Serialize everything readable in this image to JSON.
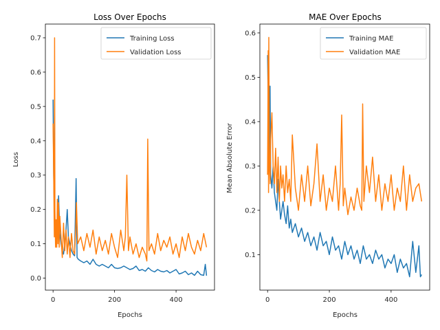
{
  "chart_data": [
    {
      "type": "line",
      "title": "Loss Over Epochs",
      "xlabel": "Epochs",
      "ylabel": "Loss",
      "xlim": [
        -25,
        525
      ],
      "ylim": [
        -0.035,
        0.74
      ],
      "xticks": [
        0,
        200,
        400
      ],
      "yticks": [
        0.0,
        0.1,
        0.2,
        0.3,
        0.4,
        0.5,
        0.6,
        0.7
      ],
      "ytick_labels": [
        "0.0",
        "0.1",
        "0.2",
        "0.3",
        "0.4",
        "0.5",
        "0.6",
        "0.7"
      ],
      "legend_position": "top-right",
      "grid": false,
      "series": [
        {
          "name": "Training Loss",
          "color": "#1f77b4",
          "x": [
            0,
            2,
            4,
            6,
            8,
            10,
            14,
            18,
            22,
            26,
            30,
            34,
            38,
            42,
            46,
            50,
            55,
            60,
            65,
            70,
            75,
            78,
            82,
            90,
            100,
            110,
            120,
            130,
            140,
            150,
            160,
            170,
            180,
            190,
            200,
            210,
            220,
            230,
            240,
            250,
            260,
            270,
            280,
            290,
            300,
            310,
            320,
            330,
            340,
            350,
            360,
            370,
            380,
            390,
            400,
            410,
            420,
            430,
            440,
            450,
            460,
            470,
            480,
            490,
            495,
            499
          ],
          "y": [
            0.52,
            0.3,
            0.2,
            0.17,
            0.14,
            0.16,
            0.12,
            0.24,
            0.13,
            0.1,
            0.08,
            0.07,
            0.1,
            0.14,
            0.2,
            0.12,
            0.1,
            0.08,
            0.07,
            0.065,
            0.29,
            0.06,
            0.055,
            0.05,
            0.045,
            0.05,
            0.04,
            0.055,
            0.04,
            0.035,
            0.04,
            0.035,
            0.03,
            0.04,
            0.03,
            0.028,
            0.03,
            0.035,
            0.03,
            0.025,
            0.028,
            0.035,
            0.022,
            0.025,
            0.02,
            0.03,
            0.022,
            0.018,
            0.025,
            0.02,
            0.018,
            0.022,
            0.015,
            0.02,
            0.025,
            0.012,
            0.015,
            0.02,
            0.01,
            0.015,
            0.008,
            0.02,
            0.01,
            0.008,
            0.04,
            0.007
          ]
        },
        {
          "name": "Validation Loss",
          "color": "#ff7f0e",
          "x": [
            0,
            2,
            4,
            5,
            6,
            8,
            10,
            12,
            14,
            16,
            18,
            20,
            22,
            26,
            30,
            34,
            38,
            42,
            46,
            50,
            55,
            60,
            65,
            70,
            74,
            76,
            80,
            90,
            100,
            110,
            120,
            130,
            140,
            150,
            160,
            170,
            180,
            190,
            200,
            210,
            220,
            230,
            235,
            240,
            245,
            250,
            260,
            270,
            280,
            290,
            300,
            305,
            308,
            312,
            320,
            330,
            340,
            350,
            360,
            370,
            380,
            390,
            400,
            410,
            420,
            430,
            440,
            450,
            460,
            470,
            480,
            490,
            499
          ],
          "y": [
            0.45,
            0.3,
            0.12,
            0.7,
            0.2,
            0.09,
            0.17,
            0.09,
            0.23,
            0.1,
            0.22,
            0.09,
            0.18,
            0.12,
            0.06,
            0.16,
            0.08,
            0.14,
            0.07,
            0.12,
            0.06,
            0.13,
            0.08,
            0.07,
            0.15,
            0.22,
            0.1,
            0.12,
            0.08,
            0.13,
            0.09,
            0.14,
            0.07,
            0.12,
            0.08,
            0.11,
            0.07,
            0.13,
            0.09,
            0.06,
            0.14,
            0.08,
            0.12,
            0.3,
            0.08,
            0.12,
            0.07,
            0.1,
            0.06,
            0.09,
            0.07,
            0.05,
            0.405,
            0.08,
            0.1,
            0.07,
            0.13,
            0.08,
            0.11,
            0.09,
            0.12,
            0.07,
            0.1,
            0.06,
            0.12,
            0.08,
            0.13,
            0.09,
            0.07,
            0.11,
            0.08,
            0.13,
            0.09
          ]
        }
      ]
    },
    {
      "type": "line",
      "title": "MAE Over Epochs",
      "xlabel": "Epochs",
      "ylabel": "Mean Absolute Error",
      "xlim": [
        -25,
        525
      ],
      "ylim": [
        0.02,
        0.62
      ],
      "xticks": [
        0,
        200,
        400
      ],
      "yticks": [
        0.1,
        0.2,
        0.3,
        0.4,
        0.5,
        0.6
      ],
      "ytick_labels": [
        "0.1",
        "0.2",
        "0.3",
        "0.4",
        "0.5",
        "0.6"
      ],
      "legend_position": "top-right",
      "grid": false,
      "series": [
        {
          "name": "Training MAE",
          "color": "#1f77b4",
          "x": [
            0,
            2,
            4,
            6,
            8,
            10,
            14,
            18,
            22,
            26,
            30,
            34,
            38,
            42,
            46,
            50,
            55,
            60,
            65,
            70,
            75,
            80,
            90,
            100,
            110,
            120,
            130,
            140,
            150,
            160,
            170,
            180,
            190,
            200,
            210,
            220,
            230,
            240,
            250,
            260,
            270,
            280,
            290,
            300,
            310,
            320,
            330,
            340,
            350,
            360,
            370,
            380,
            390,
            400,
            410,
            420,
            430,
            440,
            450,
            460,
            470,
            480,
            490,
            495,
            499
          ],
          "y": [
            0.55,
            0.45,
            0.32,
            0.3,
            0.48,
            0.28,
            0.25,
            0.3,
            0.24,
            0.22,
            0.2,
            0.27,
            0.22,
            0.18,
            0.2,
            0.22,
            0.19,
            0.17,
            0.21,
            0.16,
            0.18,
            0.15,
            0.17,
            0.14,
            0.16,
            0.13,
            0.15,
            0.12,
            0.14,
            0.11,
            0.15,
            0.12,
            0.13,
            0.1,
            0.14,
            0.11,
            0.12,
            0.09,
            0.13,
            0.1,
            0.12,
            0.09,
            0.11,
            0.08,
            0.12,
            0.09,
            0.1,
            0.08,
            0.11,
            0.09,
            0.1,
            0.07,
            0.09,
            0.08,
            0.1,
            0.06,
            0.09,
            0.07,
            0.08,
            0.05,
            0.13,
            0.06,
            0.12,
            0.05,
            0.055
          ]
        },
        {
          "name": "Validation MAE",
          "color": "#ff7f0e",
          "x": [
            0,
            2,
            3,
            4,
            6,
            8,
            10,
            14,
            18,
            22,
            26,
            30,
            34,
            38,
            42,
            46,
            50,
            55,
            60,
            65,
            70,
            75,
            80,
            90,
            100,
            110,
            120,
            130,
            140,
            150,
            160,
            170,
            180,
            190,
            200,
            210,
            220,
            230,
            235,
            240,
            245,
            250,
            260,
            270,
            280,
            290,
            300,
            305,
            308,
            312,
            320,
            330,
            340,
            350,
            360,
            370,
            380,
            390,
            400,
            410,
            420,
            430,
            440,
            450,
            460,
            470,
            480,
            490,
            499
          ],
          "y": [
            0.28,
            0.56,
            0.24,
            0.59,
            0.3,
            0.26,
            0.36,
            0.42,
            0.3,
            0.26,
            0.34,
            0.24,
            0.32,
            0.22,
            0.3,
            0.25,
            0.28,
            0.22,
            0.3,
            0.24,
            0.27,
            0.22,
            0.37,
            0.25,
            0.2,
            0.28,
            0.22,
            0.3,
            0.21,
            0.26,
            0.35,
            0.22,
            0.28,
            0.2,
            0.25,
            0.22,
            0.3,
            0.2,
            0.26,
            0.415,
            0.21,
            0.25,
            0.19,
            0.23,
            0.2,
            0.25,
            0.21,
            0.2,
            0.44,
            0.22,
            0.3,
            0.24,
            0.32,
            0.22,
            0.28,
            0.2,
            0.26,
            0.22,
            0.28,
            0.2,
            0.25,
            0.22,
            0.3,
            0.2,
            0.28,
            0.22,
            0.25,
            0.26,
            0.22
          ]
        }
      ]
    }
  ]
}
